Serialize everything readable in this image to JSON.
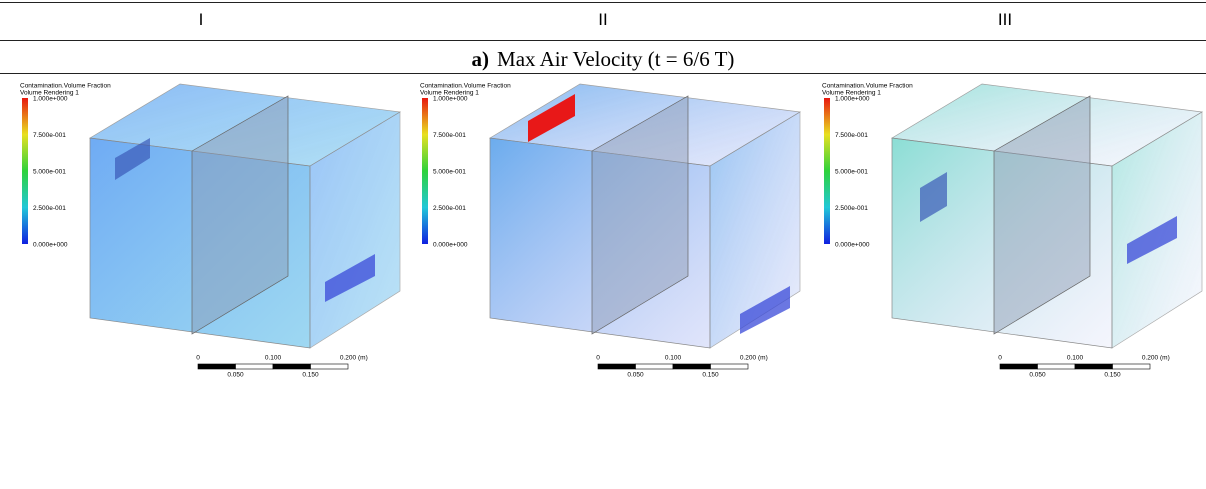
{
  "header": {
    "columns": [
      "I",
      "II",
      "III"
    ]
  },
  "caption": {
    "label": "a)",
    "text": "Max Air Velocity (t = 6/6 T)"
  },
  "panels": [
    {
      "legend_title": "Contamination.Volume Fraction",
      "legend_subtitle": "Volume Rendering 1",
      "legend_ticks": [
        "1.000e+000",
        "7.500e-001",
        "5.000e-001",
        "2.500e-001",
        "0.000e+000"
      ],
      "scale_top": [
        "0",
        "0.100",
        "0.200"
      ],
      "scale_unit": "(m)",
      "scale_bottom": [
        "0.050",
        "0.150"
      ]
    },
    {
      "legend_title": "Contamination.Volume Fraction",
      "legend_subtitle": "Volume Rendering 1",
      "legend_ticks": [
        "1.000e+000",
        "7.500e-001",
        "5.000e-001",
        "2.500e-001",
        "0.000e+000"
      ],
      "scale_top": [
        "0",
        "0.100",
        "0.200"
      ],
      "scale_unit": "(m)",
      "scale_bottom": [
        "0.050",
        "0.150"
      ]
    },
    {
      "legend_title": "Contamination.Volume Fraction",
      "legend_subtitle": "Volume Rendering 1",
      "legend_ticks": [
        "1.000e+000",
        "7.500e-001",
        "5.000e-001",
        "2.500e-001",
        "0.000e+000"
      ],
      "scale_top": [
        "0",
        "0.100",
        "0.200"
      ],
      "scale_unit": "(m)",
      "scale_bottom": [
        "0.050",
        "0.150"
      ]
    }
  ]
}
